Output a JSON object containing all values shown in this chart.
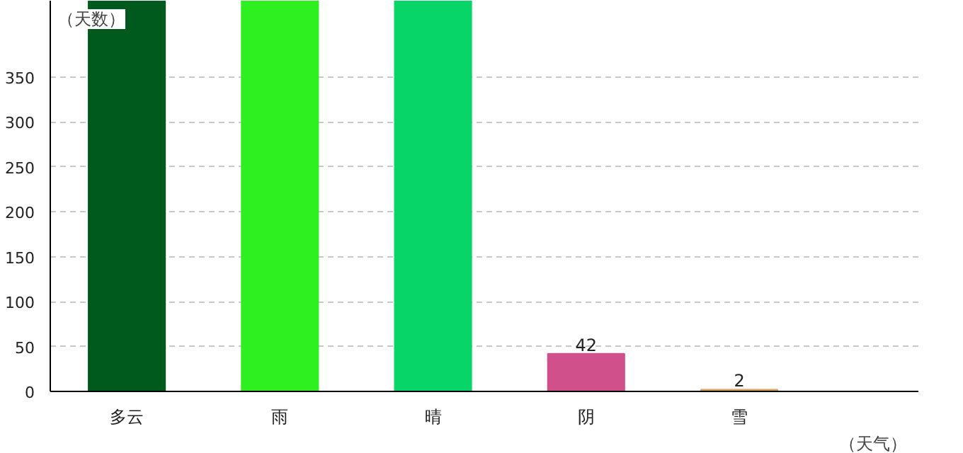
{
  "chart_data": {
    "type": "bar",
    "xlabel": "（天气）",
    "ylabel": "（天数）",
    "categories": [
      "多云",
      "雨",
      "晴",
      "阴",
      "雪"
    ],
    "values": [
      435,
      435,
      435,
      42,
      2
    ],
    "colors": [
      "#005a1e",
      "#2ef021",
      "#08d567",
      "#d0508c",
      "#d8a060"
    ],
    "value_labels": [
      null,
      null,
      null,
      "42",
      "2"
    ],
    "ylim": [
      0,
      435
    ],
    "yticks": [
      0,
      50,
      100,
      150,
      200,
      250,
      300,
      350
    ],
    "grid": "y"
  }
}
